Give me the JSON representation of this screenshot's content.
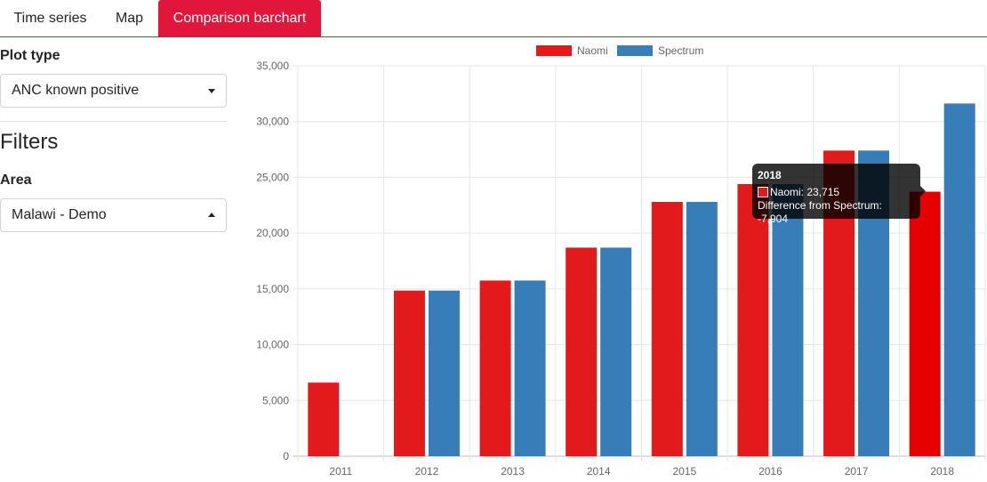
{
  "tabs": [
    {
      "label": "Time series"
    },
    {
      "label": "Map"
    },
    {
      "label": "Comparison barchart",
      "active": true
    }
  ],
  "sidebar": {
    "plot_type_label": "Plot type",
    "plot_type_value": "ANC known positive",
    "filters_heading": "Filters",
    "area_label": "Area",
    "area_value": "Malawi - Demo"
  },
  "colors": {
    "accent": "#e0163d",
    "naomi": "#e31a1c",
    "naomi_highlight": "#e60000",
    "spectrum": "#377eb8"
  },
  "tooltip": {
    "title": "2018",
    "line1": "Naomi: 23,715",
    "line2": "Difference from Spectrum: -7,904"
  },
  "chart_data": {
    "type": "bar",
    "categories": [
      "2011",
      "2012",
      "2013",
      "2014",
      "2015",
      "2016",
      "2017",
      "2018"
    ],
    "series": [
      {
        "name": "Naomi",
        "values": [
          6600,
          14850,
          15750,
          18700,
          22800,
          24400,
          27400,
          23715
        ]
      },
      {
        "name": "Spectrum",
        "values": [
          null,
          14850,
          15750,
          18700,
          22800,
          24400,
          27400,
          31619
        ]
      }
    ],
    "ylim": [
      0,
      35000
    ],
    "yticks": [
      0,
      5000,
      10000,
      15000,
      20000,
      25000,
      30000,
      35000
    ],
    "ytick_labels": [
      "0",
      "5,000",
      "10,000",
      "15,000",
      "20,000",
      "25,000",
      "30,000",
      "35,000"
    ],
    "grid": true,
    "legend": "top-center"
  }
}
